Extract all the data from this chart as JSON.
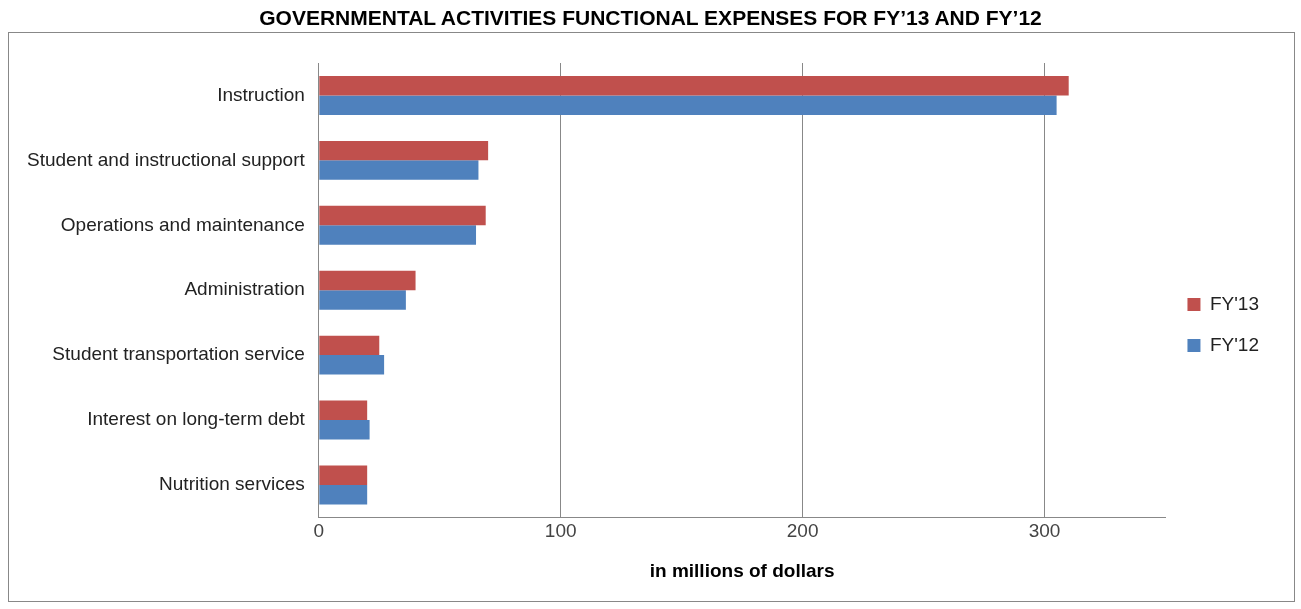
{
  "chart_data": {
    "type": "bar",
    "orientation": "horizontal",
    "title": "GOVERNMENTAL ACTIVITIES FUNCTIONAL EXPENSES FOR FY’13 AND FY’12",
    "xlabel": "in millions of dollars",
    "categories": [
      "Instruction",
      "Student and instructional support",
      "Operations and maintenance",
      "Administration",
      "Student transportation service",
      "Interest on long-term debt",
      "Nutrition services"
    ],
    "series": [
      {
        "name": "FY'13",
        "color": "#c0504d",
        "values": [
          310,
          70,
          69,
          40,
          25,
          20,
          20
        ]
      },
      {
        "name": "FY'12",
        "color": "#4f81bd",
        "values": [
          305,
          66,
          65,
          36,
          27,
          21,
          20
        ]
      }
    ],
    "xlim": [
      0,
      350
    ],
    "xticks": [
      0,
      100,
      200,
      300
    ],
    "grid": "x",
    "legend": "right"
  }
}
